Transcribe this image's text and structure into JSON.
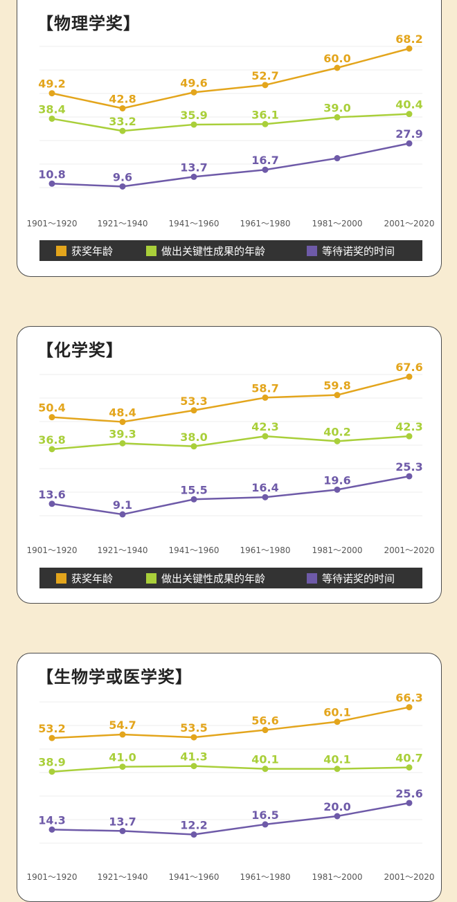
{
  "colors": {
    "award_age": "#e3a51c",
    "work_age": "#a9cf3a",
    "wait_time": "#6e5aa8"
  },
  "chart_data": [
    {
      "type": "line",
      "title": "【物理学奖】",
      "categories": [
        "1901～1920",
        "1921～1940",
        "1941～1960",
        "1961～1980",
        "1981～2000",
        "2001～2020"
      ],
      "ylim": [
        0,
        75
      ],
      "grid": true,
      "legend_position": "bottom",
      "series": [
        {
          "name": "获奖年龄",
          "values": [
            49.2,
            42.8,
            49.6,
            52.7,
            60.0,
            68.2
          ]
        },
        {
          "name": "做出关键性成果的年龄",
          "values": [
            38.4,
            33.2,
            35.9,
            36.1,
            39.0,
            40.4
          ]
        },
        {
          "name": "等待诺奖的时间",
          "values": [
            10.8,
            9.6,
            13.7,
            16.7,
            21.6,
            27.9
          ]
        }
      ]
    },
    {
      "type": "line",
      "title": "【化学奖】",
      "categories": [
        "1901～1920",
        "1921～1940",
        "1941～1960",
        "1961～1980",
        "1981～2000",
        "2001～2020"
      ],
      "ylim": [
        0,
        75
      ],
      "grid": true,
      "legend_position": "bottom",
      "series": [
        {
          "name": "获奖年龄",
          "values": [
            50.4,
            48.4,
            53.3,
            58.7,
            59.8,
            67.6
          ]
        },
        {
          "name": "做出关键性成果的年龄",
          "values": [
            36.8,
            39.3,
            38.0,
            42.3,
            40.2,
            42.3
          ]
        },
        {
          "name": "等待诺奖的时间",
          "values": [
            13.6,
            9.1,
            15.5,
            16.4,
            19.6,
            25.3
          ]
        }
      ]
    },
    {
      "type": "line",
      "title": "【生物学或医学奖】",
      "categories": [
        "1901～1920",
        "1921～1940",
        "1941～1960",
        "1961～1980",
        "1981～2000",
        "2001～2020"
      ],
      "ylim": [
        0,
        75
      ],
      "grid": true,
      "series": [
        {
          "name": "获奖年龄",
          "values": [
            53.2,
            54.7,
            53.5,
            56.6,
            60.1,
            66.3
          ]
        },
        {
          "name": "做出关键性成果的年龄",
          "values": [
            38.9,
            41.0,
            41.3,
            40.1,
            40.1,
            40.7
          ]
        },
        {
          "name": "等待诺奖的时间",
          "values": [
            14.3,
            13.7,
            12.2,
            16.5,
            20.0,
            25.6
          ]
        }
      ]
    }
  ],
  "labels_visible": [
    [
      [
        true,
        true,
        true,
        true,
        true,
        true
      ],
      [
        true,
        true,
        true,
        true,
        true,
        true
      ],
      [
        true,
        true,
        true,
        true,
        false,
        true
      ]
    ],
    [
      [
        true,
        true,
        true,
        true,
        true,
        true
      ],
      [
        true,
        true,
        true,
        true,
        true,
        true
      ],
      [
        true,
        true,
        true,
        true,
        true,
        true
      ]
    ],
    [
      [
        true,
        true,
        true,
        true,
        true,
        true
      ],
      [
        true,
        true,
        true,
        true,
        true,
        true
      ],
      [
        true,
        true,
        true,
        true,
        true,
        true
      ]
    ]
  ],
  "legend": {
    "award_age": "获奖年龄",
    "work_age": "做出关键性成果的年龄",
    "wait_time": "等待诺奖的时间"
  }
}
